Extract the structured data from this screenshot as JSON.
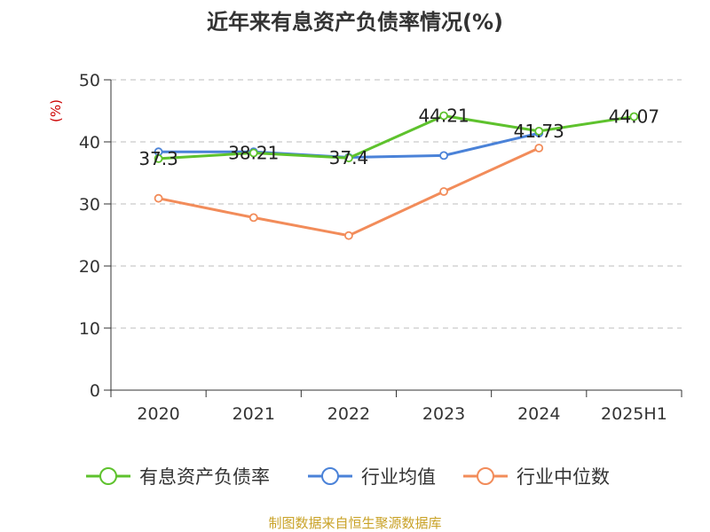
{
  "chart_data": {
    "type": "line",
    "title": "近年来有息资产负债率情况(%)",
    "ylabel": "(%)",
    "ylim": [
      0,
      50
    ],
    "yticks": [
      0,
      10,
      20,
      30,
      40,
      50
    ],
    "grid": true,
    "legend_position": "bottom",
    "categories": [
      "2020",
      "2021",
      "2022",
      "2023",
      "2024",
      "2025H1"
    ],
    "series": [
      {
        "name": "有息资产负债率",
        "color": "#5ec22d",
        "values": [
          37.3,
          38.21,
          37.4,
          44.21,
          41.73,
          44.07
        ],
        "labels": [
          "37.3",
          "38.21",
          "37.4",
          "44.21",
          "41.73",
          "44.07"
        ]
      },
      {
        "name": "行业均值",
        "color": "#4a82d8",
        "values": [
          38.4,
          38.4,
          37.5,
          37.8,
          41.4,
          null
        ]
      },
      {
        "name": "行业中位数",
        "color": "#f28c5a",
        "values": [
          30.9,
          27.8,
          24.9,
          32.0,
          39.0,
          null
        ]
      }
    ],
    "source": "制图数据来自恒生聚源数据库"
  }
}
